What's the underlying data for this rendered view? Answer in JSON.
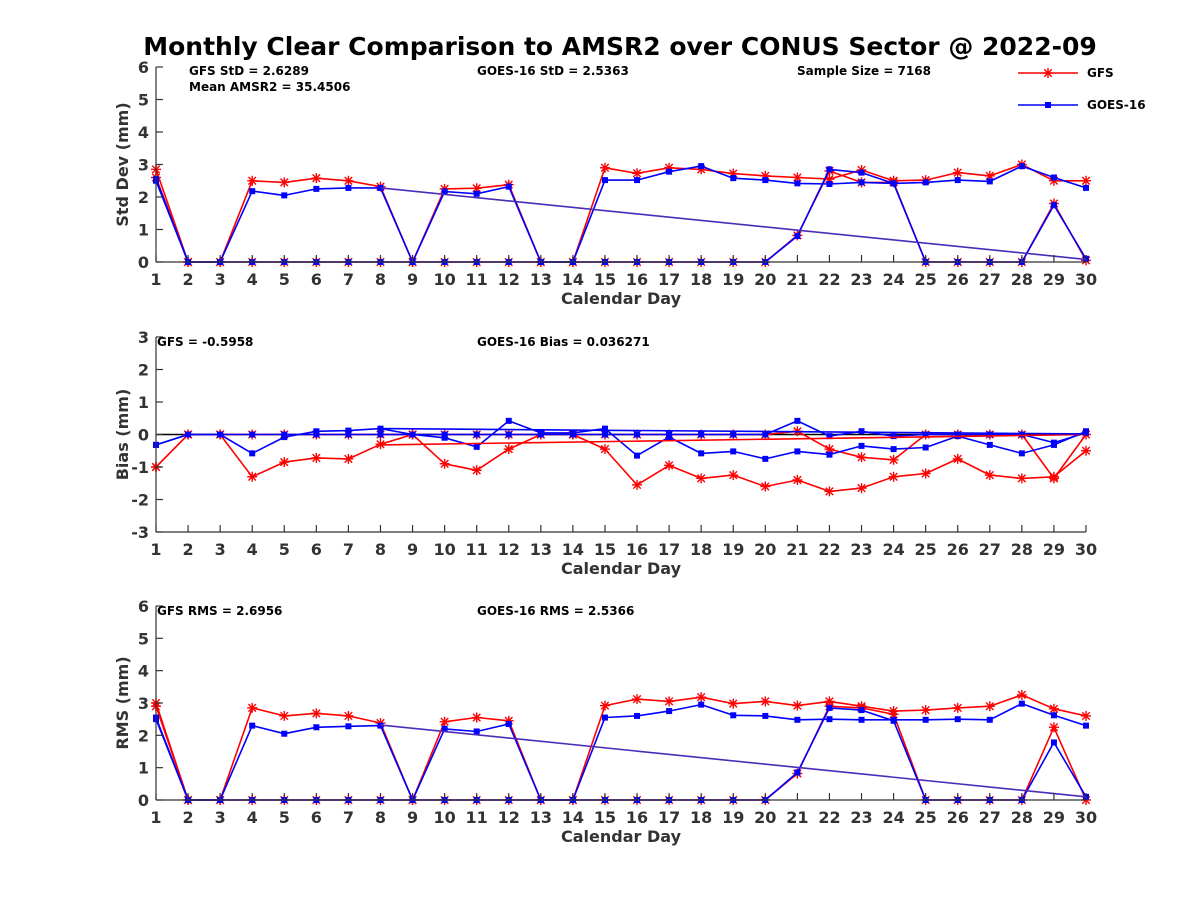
{
  "title": "Monthly Clear Comparison to AMSR2 over CONUS Sector @ 2022-09",
  "colors": {
    "gfs": "#ff0000",
    "goes": "#0000ff",
    "zero_line": "#000000",
    "axis": "#333333",
    "combined_line": "#4a2bb8"
  },
  "legend": [
    {
      "label": "GFS",
      "color": "#ff0000",
      "marker": "asterisk"
    },
    {
      "label": "GOES-16",
      "color": "#0000ff",
      "marker": "square"
    }
  ],
  "chart_data": [
    {
      "type": "line",
      "xlabel": "Calendar Day",
      "ylabel": "Std Dev (mm)",
      "xlim": [
        1,
        30
      ],
      "ylim": [
        0,
        6
      ],
      "yticks": [
        0,
        1,
        2,
        3,
        4,
        5,
        6
      ],
      "stats": [
        "GFS StD = 2.6289",
        "Mean AMSR2 = 35.4506",
        "GOES-16 StD = 2.5363",
        "Sample Size = 7168"
      ],
      "series": [
        {
          "name": "GFS",
          "color": "#ff0000",
          "marker": "asterisk",
          "x": [
            1,
            2,
            3,
            4,
            5,
            6,
            7,
            8,
            9,
            10,
            11,
            12,
            13,
            14,
            15,
            16,
            17,
            18,
            19,
            20,
            21,
            22,
            23,
            24,
            25,
            26,
            27,
            28,
            29,
            30
          ],
          "y": [
            2.85,
            0,
            0,
            2.5,
            2.45,
            2.58,
            2.5,
            2.32,
            0,
            2.25,
            2.27,
            2.38,
            0,
            0,
            2.9,
            2.73,
            2.9,
            2.85,
            2.72,
            2.65,
            2.6,
            2.55,
            2.83,
            2.5,
            2.52,
            2.75,
            2.65,
            3.0,
            2.5,
            2.5
          ]
        },
        {
          "name": "GFS",
          "color": "#ff0000",
          "marker": "asterisk",
          "x": [
            1,
            2,
            3,
            4,
            5,
            6,
            7,
            8,
            9,
            10,
            11,
            12,
            13,
            14,
            15,
            16,
            17,
            18,
            19,
            20,
            21,
            22,
            23,
            24,
            25,
            26,
            27,
            28,
            29,
            30
          ],
          "y": [
            2.6,
            0,
            0,
            0,
            0,
            0,
            0,
            0,
            0,
            0,
            0,
            0,
            0,
            0,
            0,
            0,
            0,
            0,
            0,
            0,
            0.82,
            2.8,
            2.45,
            2.45,
            0,
            0,
            0,
            0,
            1.8,
            0.05
          ]
        },
        {
          "name": "GOES-16",
          "color": "#0000ff",
          "marker": "square",
          "x": [
            1,
            2,
            3,
            4,
            5,
            6,
            7,
            8,
            9,
            10,
            11,
            12,
            13,
            14,
            15,
            16,
            17,
            18,
            19,
            20,
            21,
            22,
            23,
            24,
            25,
            26,
            27,
            28,
            29,
            30
          ],
          "y": [
            2.55,
            0,
            0,
            2.18,
            2.05,
            2.25,
            2.28,
            2.28,
            0,
            2.17,
            2.1,
            2.32,
            0,
            0,
            2.52,
            2.52,
            2.78,
            2.95,
            2.58,
            2.52,
            2.42,
            2.4,
            2.45,
            2.42,
            2.45,
            2.52,
            2.48,
            2.95,
            2.6,
            2.28
          ]
        },
        {
          "name": "GOES-16",
          "color": "#0000ff",
          "marker": "square",
          "x": [
            1,
            2,
            3,
            4,
            5,
            6,
            7,
            8,
            9,
            10,
            11,
            12,
            13,
            14,
            15,
            16,
            17,
            18,
            19,
            20,
            21,
            22,
            23,
            24,
            25,
            26,
            27,
            28,
            29,
            30
          ],
          "y": [
            2.5,
            0,
            0,
            0,
            0,
            0,
            0,
            0,
            0,
            0,
            0,
            0,
            0,
            0,
            0,
            0,
            0,
            0,
            0,
            0,
            0.8,
            2.85,
            2.75,
            2.42,
            0,
            0,
            0,
            0,
            1.75,
            0.1
          ]
        },
        {
          "name": "",
          "color": "#4a2bb8",
          "marker": "none",
          "x": [
            8,
            30
          ],
          "y": [
            2.28,
            0.08
          ]
        }
      ]
    },
    {
      "type": "line",
      "xlabel": "Calendar Day",
      "ylabel": "Bias (mm)",
      "xlim": [
        1,
        30
      ],
      "ylim": [
        -3,
        3
      ],
      "yticks": [
        -3,
        -2,
        -1,
        0,
        1,
        2,
        3
      ],
      "stats": [
        "GFS = -0.5958",
        "GOES-16 Bias = 0.036271"
      ],
      "series": [
        {
          "name": "GFS",
          "color": "#ff0000",
          "marker": "asterisk",
          "x": [
            1,
            2,
            3,
            4,
            5,
            6,
            7,
            8,
            9,
            10,
            11,
            12,
            13,
            14,
            15,
            16,
            17,
            18,
            19,
            20,
            21,
            22,
            23,
            24,
            25,
            26,
            27,
            28,
            29,
            30
          ],
          "y": [
            -1.0,
            0,
            0,
            -1.3,
            -0.85,
            -0.72,
            -0.75,
            -0.3,
            0,
            -0.9,
            -1.1,
            -0.45,
            0,
            0,
            -0.45,
            -1.55,
            -0.95,
            -1.35,
            -1.25,
            -1.6,
            -1.4,
            -1.75,
            -1.65,
            -1.3,
            -1.2,
            -0.75,
            -1.25,
            -1.35,
            -1.3,
            -0.5
          ]
        },
        {
          "name": "GFS",
          "color": "#ff0000",
          "marker": "asterisk",
          "x": [
            1,
            2,
            3,
            4,
            5,
            6,
            7,
            8,
            9,
            10,
            11,
            12,
            13,
            14,
            15,
            16,
            17,
            18,
            19,
            20,
            21,
            22,
            23,
            24,
            25,
            26,
            27,
            28,
            29,
            30
          ],
          "y": [
            -1.0,
            0,
            0,
            0,
            0,
            0,
            0,
            0,
            0,
            0,
            0,
            0,
            0,
            0,
            0,
            0,
            0,
            0,
            0,
            0,
            0.1,
            -0.45,
            -0.7,
            -0.78,
            0,
            0,
            0,
            0,
            -1.35,
            0
          ]
        },
        {
          "name": "GOES-16",
          "color": "#0000ff",
          "marker": "square",
          "x": [
            1,
            2,
            3,
            4,
            5,
            6,
            7,
            8,
            9,
            10,
            11,
            12,
            13,
            14,
            15,
            16,
            17,
            18,
            19,
            20,
            21,
            22,
            23,
            24,
            25,
            26,
            27,
            28,
            29,
            30
          ],
          "y": [
            -0.32,
            0,
            0,
            -0.58,
            -0.08,
            0.1,
            0.12,
            0.18,
            0,
            -0.1,
            -0.38,
            0.42,
            0.05,
            0.05,
            0.18,
            -0.65,
            -0.08,
            -0.58,
            -0.52,
            -0.75,
            -0.52,
            -0.62,
            -0.35,
            -0.45,
            -0.4,
            -0.05,
            -0.32,
            -0.58,
            -0.32,
            0.1
          ]
        },
        {
          "name": "GOES-16",
          "color": "#0000ff",
          "marker": "square",
          "x": [
            1,
            2,
            3,
            4,
            5,
            6,
            7,
            8,
            9,
            10,
            11,
            12,
            13,
            14,
            15,
            16,
            17,
            18,
            19,
            20,
            21,
            22,
            23,
            24,
            25,
            26,
            27,
            28,
            29,
            30
          ],
          "y": [
            -0.32,
            0,
            0,
            0,
            0,
            0,
            0,
            0,
            0,
            0,
            0,
            0,
            0,
            0,
            0,
            0,
            0,
            0,
            0,
            0,
            0.42,
            -0.05,
            0.1,
            -0.05,
            0,
            0,
            0,
            0,
            -0.25,
            0.05
          ]
        },
        {
          "name": "",
          "color": "#ff0000",
          "marker": "none",
          "x": [
            8,
            30
          ],
          "y": [
            -0.32,
            0.0
          ]
        },
        {
          "name": "",
          "color": "#0000ff",
          "marker": "none",
          "x": [
            8,
            30
          ],
          "y": [
            0.18,
            0.02
          ]
        }
      ]
    },
    {
      "type": "line",
      "xlabel": "Calendar Day",
      "ylabel": "RMS (mm)",
      "xlim": [
        1,
        30
      ],
      "ylim": [
        0,
        6
      ],
      "yticks": [
        0,
        1,
        2,
        3,
        4,
        5,
        6
      ],
      "stats": [
        "GFS RMS = 2.6956",
        "GOES-16 RMS = 2.5366"
      ],
      "series": [
        {
          "name": "GFS",
          "color": "#ff0000",
          "marker": "asterisk",
          "x": [
            1,
            2,
            3,
            4,
            5,
            6,
            7,
            8,
            9,
            10,
            11,
            12,
            13,
            14,
            15,
            16,
            17,
            18,
            19,
            20,
            21,
            22,
            23,
            24,
            25,
            26,
            27,
            28,
            29,
            30
          ],
          "y": [
            3.0,
            0,
            0,
            2.85,
            2.6,
            2.68,
            2.6,
            2.38,
            0,
            2.42,
            2.55,
            2.45,
            0,
            0,
            2.92,
            3.12,
            3.05,
            3.18,
            2.98,
            3.05,
            2.92,
            3.05,
            2.9,
            2.75,
            2.78,
            2.85,
            2.9,
            3.25,
            2.82,
            2.6
          ]
        },
        {
          "name": "GFS",
          "color": "#ff0000",
          "marker": "asterisk",
          "x": [
            1,
            2,
            3,
            4,
            5,
            6,
            7,
            8,
            9,
            10,
            11,
            12,
            13,
            14,
            15,
            16,
            17,
            18,
            19,
            20,
            21,
            22,
            23,
            24,
            25,
            26,
            27,
            28,
            29,
            30
          ],
          "y": [
            2.9,
            0,
            0,
            0,
            0,
            0,
            0,
            0,
            0,
            0,
            0,
            0,
            0,
            0,
            0,
            0,
            0,
            0,
            0,
            0,
            0.82,
            2.9,
            2.85,
            2.65,
            0,
            0,
            0,
            0,
            2.25,
            0
          ]
        },
        {
          "name": "GOES-16",
          "color": "#0000ff",
          "marker": "square",
          "x": [
            1,
            2,
            3,
            4,
            5,
            6,
            7,
            8,
            9,
            10,
            11,
            12,
            13,
            14,
            15,
            16,
            17,
            18,
            19,
            20,
            21,
            22,
            23,
            24,
            25,
            26,
            27,
            28,
            29,
            30
          ],
          "y": [
            2.55,
            0,
            0,
            2.3,
            2.05,
            2.25,
            2.28,
            2.3,
            0,
            2.2,
            2.12,
            2.35,
            0,
            0,
            2.55,
            2.6,
            2.75,
            2.95,
            2.62,
            2.6,
            2.48,
            2.5,
            2.48,
            2.48,
            2.48,
            2.5,
            2.48,
            2.98,
            2.62,
            2.3
          ]
        },
        {
          "name": "GOES-16",
          "color": "#0000ff",
          "marker": "square",
          "x": [
            1,
            2,
            3,
            4,
            5,
            6,
            7,
            8,
            9,
            10,
            11,
            12,
            13,
            14,
            15,
            16,
            17,
            18,
            19,
            20,
            21,
            22,
            23,
            24,
            25,
            26,
            27,
            28,
            29,
            30
          ],
          "y": [
            2.5,
            0,
            0,
            0,
            0,
            0,
            0,
            0,
            0,
            0,
            0,
            0,
            0,
            0,
            0,
            0,
            0,
            0,
            0,
            0,
            0.85,
            2.85,
            2.78,
            2.45,
            0,
            0,
            0,
            0,
            1.78,
            0.1
          ]
        },
        {
          "name": "",
          "color": "#4a2bb8",
          "marker": "none",
          "x": [
            8,
            30
          ],
          "y": [
            2.32,
            0.1
          ]
        }
      ]
    }
  ]
}
